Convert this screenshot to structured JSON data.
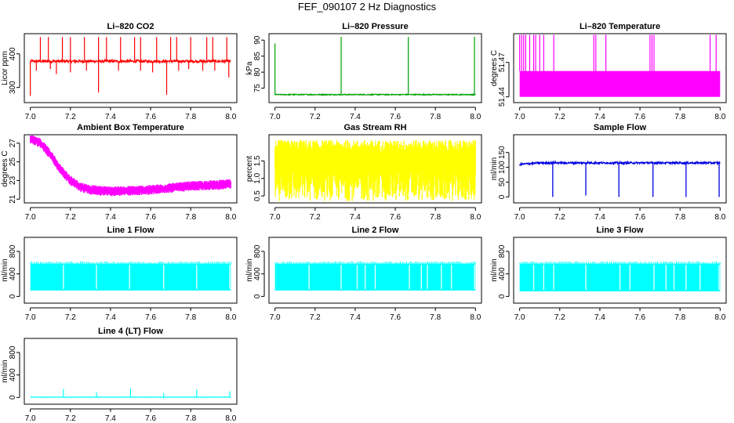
{
  "title": "FEF_090107  2 Hz Diagnostics",
  "chart_data": [
    {
      "id": "co2",
      "type": "line",
      "title": "Li–820 CO2",
      "ylabel": "Licor ppm",
      "color": "#ff0000",
      "xlim": [
        6.97,
        8.03
      ],
      "ylim": [
        255,
        460
      ],
      "xticks": [
        "7.0",
        "7.2",
        "7.4",
        "7.6",
        "7.8",
        "8.0"
      ],
      "yticks": [
        {
          "v": 300,
          "l": "300"
        },
        {
          "v": 400,
          "l": "400"
        }
      ],
      "baseline": 378,
      "noise": 4,
      "spikes_up": [
        7.05,
        7.09,
        7.16,
        7.2,
        7.27,
        7.34,
        7.38,
        7.45,
        7.52,
        7.55,
        7.63,
        7.7,
        7.73,
        7.8,
        7.88,
        7.91,
        7.98
      ],
      "spikes_up_value": 450,
      "spikes_down": [
        {
          "x": 7.0,
          "v": 275
        },
        {
          "x": 7.03,
          "v": 350
        },
        {
          "x": 7.1,
          "v": 355
        },
        {
          "x": 7.13,
          "v": 340
        },
        {
          "x": 7.2,
          "v": 345
        },
        {
          "x": 7.28,
          "v": 350
        },
        {
          "x": 7.34,
          "v": 285
        },
        {
          "x": 7.44,
          "v": 350
        },
        {
          "x": 7.55,
          "v": 350
        },
        {
          "x": 7.61,
          "v": 345
        },
        {
          "x": 7.68,
          "v": 278
        },
        {
          "x": 7.74,
          "v": 350
        },
        {
          "x": 7.79,
          "v": 355
        },
        {
          "x": 7.86,
          "v": 350
        },
        {
          "x": 7.92,
          "v": 350
        },
        {
          "x": 7.99,
          "v": 330
        }
      ]
    },
    {
      "id": "pressure",
      "type": "line",
      "title": "Li–820 Pressure",
      "ylabel": "kPa",
      "color": "#00a000",
      "xlim": [
        6.97,
        8.03
      ],
      "ylim": [
        70.5,
        92
      ],
      "xticks": [
        "7.0",
        "7.2",
        "7.4",
        "7.6",
        "7.8",
        "8.0"
      ],
      "yticks": [
        {
          "v": 75,
          "l": "75"
        },
        {
          "v": 80,
          "l": "80"
        },
        {
          "v": 85,
          "l": "85"
        },
        {
          "v": 90,
          "l": "90"
        }
      ],
      "baseline": 73,
      "noise": 0.15,
      "spikes": [
        {
          "x": 7.0,
          "v": 89
        },
        {
          "x": 7.33,
          "v": 91
        },
        {
          "x": 7.665,
          "v": 91
        },
        {
          "x": 7.995,
          "v": 91
        }
      ]
    },
    {
      "id": "temperature",
      "type": "line",
      "title": "Li–820 Temperature",
      "ylabel": "degrees C",
      "color": "#ff00ff",
      "xlim": [
        6.97,
        8.03
      ],
      "ylim": [
        51.435,
        51.495
      ],
      "xticks": [
        "7.0",
        "7.2",
        "7.4",
        "7.6",
        "7.8",
        "8.0"
      ],
      "yticks": [
        {
          "v": 51.44,
          "l": "51.44"
        },
        {
          "v": 51.47,
          "l": "51.47"
        }
      ],
      "low": 51.44,
      "high": 51.4625,
      "spikes": [
        7.0,
        7.01,
        7.02,
        7.03,
        7.05,
        7.07,
        7.08,
        7.1,
        7.12,
        7.17,
        7.37,
        7.38,
        7.43,
        7.65,
        7.66,
        7.67,
        7.95,
        7.98
      ],
      "spikes_value": 51.494
    },
    {
      "id": "ambient",
      "type": "line",
      "title": "Ambient Box Temperature",
      "ylabel": "degrees C",
      "color": "#ff00ff",
      "xlim": [
        6.97,
        8.03
      ],
      "ylim": [
        20.6,
        27.9
      ],
      "xticks": [
        "7.0",
        "7.2",
        "7.4",
        "7.6",
        "7.8",
        "8.0"
      ],
      "yticks": [
        {
          "v": 21,
          "l": "21"
        },
        {
          "v": 23,
          "l": "23"
        },
        {
          "v": 25,
          "l": "25"
        },
        {
          "v": 27,
          "l": "27"
        }
      ],
      "x": [
        7.0,
        7.05,
        7.1,
        7.15,
        7.2,
        7.25,
        7.3,
        7.35,
        7.4,
        7.5,
        7.6,
        7.7,
        7.8,
        7.9,
        8.0
      ],
      "y": [
        27.5,
        27,
        25.8,
        24.2,
        23,
        22.3,
        22.0,
        21.9,
        21.85,
        21.9,
        22.0,
        22.2,
        22.4,
        22.5,
        22.6
      ],
      "band": 0.7
    },
    {
      "id": "rh",
      "type": "line",
      "title": "Gas Stream RH",
      "ylabel": "percent",
      "color": "#ffff00",
      "xlim": [
        6.97,
        8.03
      ],
      "ylim": [
        0.3,
        2.25
      ],
      "xticks": [
        "7.0",
        "7.2",
        "7.4",
        "7.6",
        "7.8",
        "8.0"
      ],
      "yticks": [
        {
          "v": 0.5,
          "l": "0.5"
        },
        {
          "v": 1.0,
          "l": "1.0"
        },
        {
          "v": 1.5,
          "l": "1.5"
        }
      ],
      "hi_min": 1.75,
      "hi_max": 2.1,
      "lo_min": 0.35,
      "lo_max": 1.3
    },
    {
      "id": "sample",
      "type": "line",
      "title": "Sample Flow",
      "ylabel": "ml/min",
      "color": "#0000e0",
      "xlim": [
        6.97,
        8.03
      ],
      "ylim": [
        -20,
        210
      ],
      "xticks": [
        "7.0",
        "7.2",
        "7.4",
        "7.6",
        "7.8",
        "8.0"
      ],
      "yticks": [
        {
          "v": 0,
          "l": "0"
        },
        {
          "v": 50,
          "l": "50"
        },
        {
          "v": 100,
          "l": "100"
        },
        {
          "v": 150,
          "l": "150"
        }
      ],
      "start": 110,
      "baseline": 115,
      "noise": 3,
      "dips": [
        {
          "x": 7.165,
          "v": 0
        },
        {
          "x": 7.33,
          "v": 5
        },
        {
          "x": 7.495,
          "v": 0
        },
        {
          "x": 7.665,
          "v": 0
        },
        {
          "x": 7.83,
          "v": 0
        },
        {
          "x": 7.995,
          "v": 0
        }
      ]
    },
    {
      "id": "line1",
      "type": "line",
      "title": "Line 1 Flow",
      "ylabel": "ml/min",
      "color": "#00ffff",
      "xlim": [
        6.97,
        8.03
      ],
      "ylim": [
        -120,
        1050
      ],
      "xticks": [
        "7.0",
        "7.2",
        "7.4",
        "7.6",
        "7.8",
        "8.0"
      ],
      "yticks": [
        {
          "v": 0,
          "l": "0"
        },
        {
          "v": 400,
          "l": "400"
        },
        {
          "v": 800,
          "l": "800"
        }
      ],
      "low": 105,
      "high": 580,
      "gaps": [
        7.165,
        7.33,
        7.495,
        7.665,
        7.83,
        7.995
      ]
    },
    {
      "id": "line2",
      "type": "line",
      "title": "Line 2 Flow",
      "ylabel": "ml/min",
      "color": "#00ffff",
      "xlim": [
        6.97,
        8.03
      ],
      "ylim": [
        -120,
        1050
      ],
      "xticks": [
        "7.0",
        "7.2",
        "7.4",
        "7.6",
        "7.8",
        "8.0"
      ],
      "yticks": [
        {
          "v": 0,
          "l": "0"
        },
        {
          "v": 400,
          "l": "400"
        },
        {
          "v": 800,
          "l": "800"
        }
      ],
      "low": 105,
      "high": 580,
      "gaps": [
        7.17,
        7.33,
        7.41,
        7.45,
        7.5,
        7.67,
        7.73,
        7.76,
        7.83,
        7.88,
        7.995
      ]
    },
    {
      "id": "line3",
      "type": "line",
      "title": "Line 3 Flow",
      "ylabel": "ml/min",
      "color": "#00ffff",
      "xlim": [
        6.97,
        8.03
      ],
      "ylim": [
        -120,
        1050
      ],
      "xticks": [
        "7.0",
        "7.2",
        "7.4",
        "7.6",
        "7.8",
        "8.0"
      ],
      "yticks": [
        {
          "v": 0,
          "l": "0"
        },
        {
          "v": 400,
          "l": "400"
        },
        {
          "v": 800,
          "l": "800"
        }
      ],
      "low": 90,
      "high": 580,
      "gaps": [
        7.07,
        7.12,
        7.17,
        7.33,
        7.5,
        7.55,
        7.67,
        7.73,
        7.77,
        7.83,
        7.9,
        7.995
      ]
    },
    {
      "id": "line4",
      "type": "line",
      "title": "Line 4 (LT) Flow",
      "ylabel": "ml/min",
      "color": "#00ffff",
      "xlim": [
        6.97,
        8.03
      ],
      "ylim": [
        -120,
        1050
      ],
      "xticks": [
        "7.0",
        "7.2",
        "7.4",
        "7.6",
        "7.8",
        "8.0"
      ],
      "yticks": [
        {
          "v": 0,
          "l": "0"
        },
        {
          "v": 400,
          "l": "400"
        },
        {
          "v": 800,
          "l": "800"
        }
      ],
      "baseline": 5,
      "noise": 3,
      "spikes": [
        {
          "x": 7.165,
          "v": 150
        },
        {
          "x": 7.33,
          "v": 90
        },
        {
          "x": 7.5,
          "v": 160
        },
        {
          "x": 7.665,
          "v": 80
        },
        {
          "x": 7.83,
          "v": 140
        },
        {
          "x": 7.995,
          "v": 110
        }
      ]
    }
  ]
}
